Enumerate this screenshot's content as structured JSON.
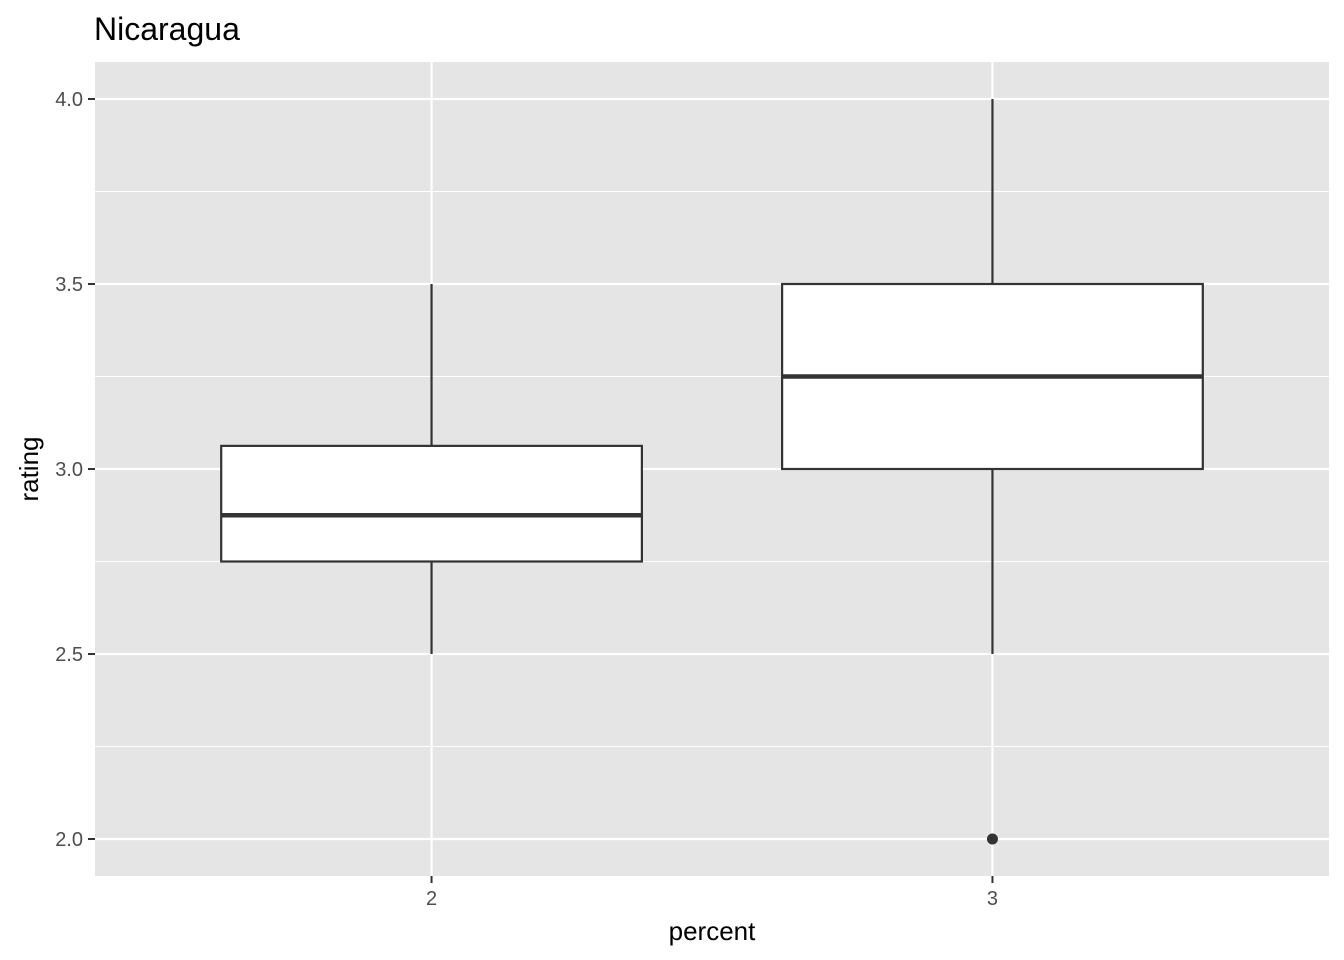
{
  "chart_data": {
    "type": "boxplot",
    "title": "Nicaragua",
    "xlabel": "percent",
    "ylabel": "rating",
    "categories": [
      "2",
      "3"
    ],
    "ylim": [
      1.9,
      4.1
    ],
    "y_ticks": [
      2.0,
      2.5,
      3.0,
      3.5,
      4.0
    ],
    "y_tick_labels": [
      "2.0",
      "2.5",
      "3.0",
      "3.5",
      "4.0"
    ],
    "grid": true,
    "boxes": [
      {
        "category": "2",
        "lower_whisker": 2.5,
        "q1": 2.75,
        "median": 2.875,
        "q3": 3.0625,
        "upper_whisker": 3.5,
        "outliers": []
      },
      {
        "category": "3",
        "lower_whisker": 2.5,
        "q1": 3.0,
        "median": 3.25,
        "q3": 3.5,
        "upper_whisker": 4.0,
        "outliers": [
          2.0
        ]
      }
    ],
    "colors": {
      "panel": "#e5e5e5",
      "grid": "#ffffff",
      "box_fill": "#ffffff",
      "box_line": "#333333",
      "point": "#333333"
    }
  }
}
